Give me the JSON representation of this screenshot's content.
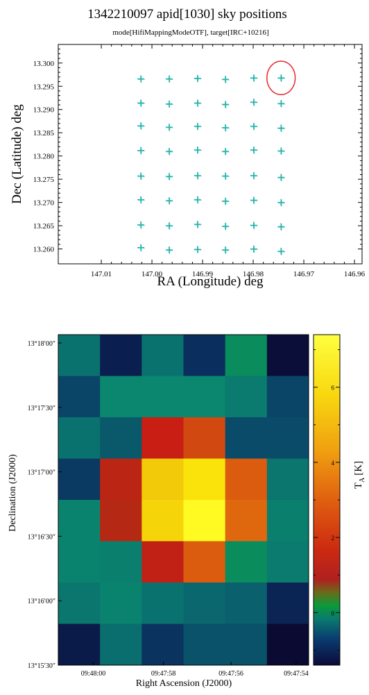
{
  "chart_data": [
    {
      "type": "scatter",
      "title": "1342210097 apid[1030] sky positions",
      "subtitle": "mode[HifiMappingModeOTF], target[IRC+10216]",
      "xlabel": "RA (Longitude) deg",
      "ylabel": "Dec (Latitude) deg",
      "xlim": [
        147.0185,
        146.9585
      ],
      "ylim": [
        13.2568,
        13.304
      ],
      "x_reversed": true,
      "x_ticks": [
        "147.01",
        "147.00",
        "146.99",
        "146.98",
        "146.97",
        "146.96"
      ],
      "y_ticks": [
        "13.260",
        "13.265",
        "13.270",
        "13.275",
        "13.280",
        "13.285",
        "13.290",
        "13.295",
        "13.300"
      ],
      "marker": "+",
      "marker_color": "#20b2aa",
      "grid": false,
      "series": [
        {
          "x": [
            147.0022,
            146.9966,
            146.991,
            146.9855,
            146.9799,
            146.9745,
            147.0022,
            146.9966,
            146.991,
            146.9855,
            146.9799,
            146.9745,
            147.0022,
            146.9966,
            146.991,
            146.9855,
            146.9799,
            146.9745,
            147.0022,
            146.9966,
            146.991,
            146.9855,
            146.9799,
            146.9745,
            147.0022,
            146.9966,
            146.991,
            146.9855,
            146.9799,
            146.9745,
            147.0022,
            146.9966,
            146.991,
            146.9855,
            146.9799,
            146.9745,
            147.0022,
            146.9966,
            146.991,
            146.9855,
            146.9799,
            146.9745,
            147.0022,
            146.9966,
            146.991,
            146.9855,
            146.9799,
            146.9745
          ],
          "y": [
            13.2966,
            13.2966,
            13.2967,
            13.2965,
            13.2968,
            13.2968,
            13.2914,
            13.2912,
            13.2914,
            13.2911,
            13.2916,
            13.2913,
            13.2865,
            13.2862,
            13.2864,
            13.2861,
            13.2864,
            13.286,
            13.2812,
            13.281,
            13.2813,
            13.281,
            13.2813,
            13.2811,
            13.2757,
            13.2756,
            13.2758,
            13.2757,
            13.2758,
            13.2754,
            13.2706,
            13.2704,
            13.2706,
            13.2703,
            13.2705,
            13.27,
            13.2652,
            13.265,
            13.2653,
            13.2649,
            13.2651,
            13.2648,
            13.2603,
            13.2598,
            13.2599,
            13.2598,
            13.26,
            13.2595
          ]
        }
      ],
      "annotations": [
        {
          "type": "circle",
          "color": "#e8262a",
          "center": [
            146.9745,
            13.2968
          ],
          "radius_x": 0.0028,
          "radius_y": 0.0036
        }
      ]
    },
    {
      "type": "heatmap",
      "xlabel": "Right Ascension (J2000)",
      "ylabel": "Declination (J2000)",
      "x_ticks": [
        "09:48:00",
        "09:47:58",
        "09:47:56",
        "09:47:54"
      ],
      "y_ticks": [
        "13°18′00″",
        "13°17′30″",
        "13°17′00″",
        "13°16′30″",
        "13°16′00″",
        "13°15′30″"
      ],
      "colorbar_label": "T",
      "colorbar_label_sub": "A",
      "colorbar_label_unit": "[K]",
      "colorbar_ticks": [
        "0",
        "2",
        "4",
        "6"
      ],
      "colorbar_range": [
        -1.4,
        7.4
      ],
      "colormap": "green-red-yellow (temperature)",
      "grid_rows": [
        [
          0.4,
          -1.0,
          0.4,
          -0.7,
          1.0,
          -1.4
        ],
        [
          -0.3,
          0.9,
          0.9,
          0.9,
          0.6,
          -0.3
        ],
        [
          0.4,
          0.0,
          1.6,
          2.4,
          -0.2,
          -0.2
        ],
        [
          -0.5,
          1.8,
          5.2,
          5.9,
          2.7,
          0.5
        ],
        [
          0.8,
          1.9,
          5.5,
          6.8,
          2.9,
          0.7
        ],
        [
          0.8,
          0.7,
          1.7,
          2.7,
          1.0,
          0.6
        ],
        [
          0.5,
          0.8,
          0.4,
          0.2,
          0.1,
          -0.9
        ],
        [
          -1.1,
          0.3,
          -0.6,
          -0.1,
          -0.1,
          -1.5
        ]
      ]
    }
  ]
}
